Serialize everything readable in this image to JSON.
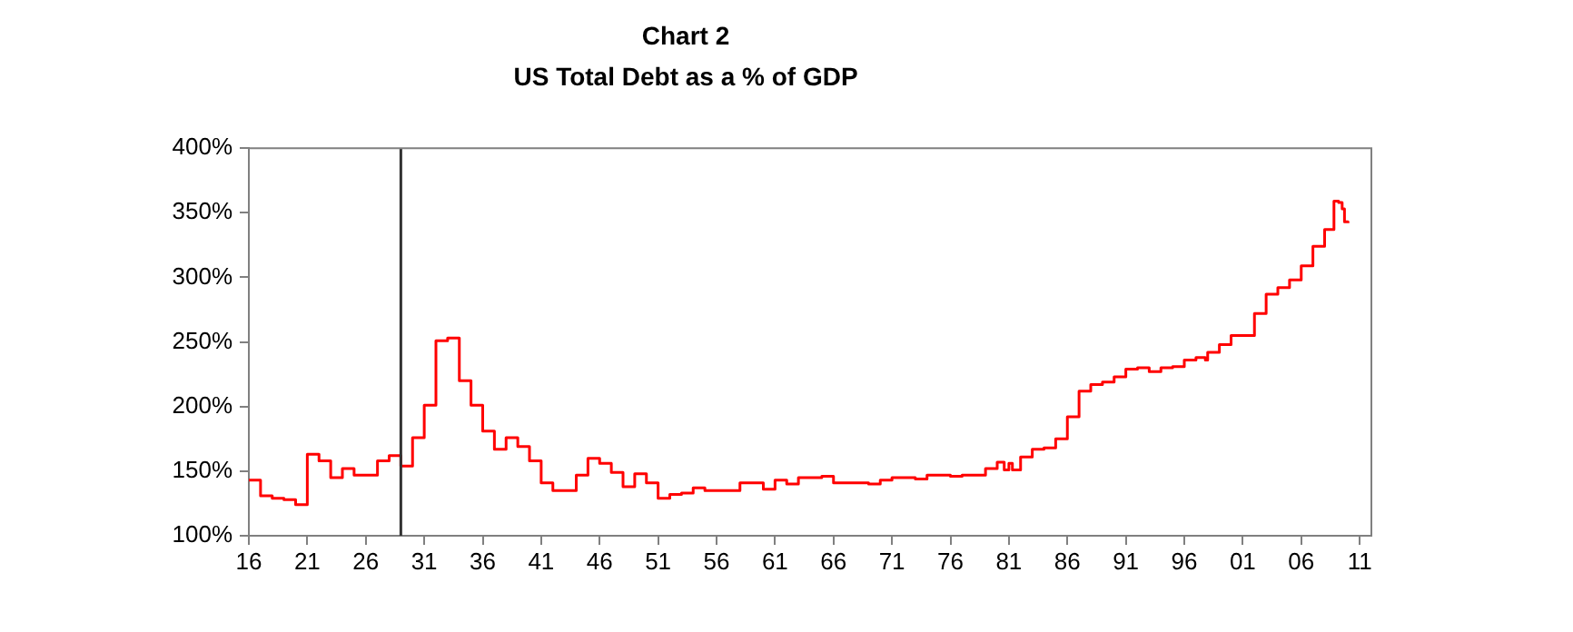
{
  "chart_data": {
    "type": "step",
    "title": "Chart 2",
    "subtitle": "US Total Debt as a % of GDP",
    "x": [
      1916,
      1917,
      1918,
      1919,
      1920,
      1921,
      1922,
      1923,
      1924,
      1925,
      1926,
      1927,
      1928,
      1929,
      1930,
      1931,
      1932,
      1933,
      1934,
      1935,
      1936,
      1937,
      1938,
      1939,
      1940,
      1941,
      1942,
      1943,
      1944,
      1945,
      1946,
      1947,
      1948,
      1949,
      1950,
      1951,
      1952,
      1953,
      1954,
      1955,
      1958,
      1960,
      1961,
      1962,
      1963,
      1965,
      1966,
      1968,
      1969,
      1970,
      1971,
      1973,
      1974,
      1976,
      1977,
      1979,
      1980,
      1980.6,
      1981,
      1981.3,
      1982,
      1983,
      1984,
      1985,
      1986,
      1987,
      1988,
      1989,
      1990,
      1991,
      1992,
      1993,
      1994,
      1995,
      1996,
      1997,
      1997.8,
      1998,
      1999,
      2000,
      2001,
      2002,
      2003,
      2004,
      2005,
      2006,
      2007,
      2008,
      2008.8,
      2009.2,
      2009.5,
      2009.7,
      2010
    ],
    "series": [
      {
        "color": "#ff0000",
        "values": [
          143,
          131,
          129,
          128,
          124,
          163,
          158,
          145,
          152,
          147,
          147,
          158,
          162,
          154,
          176,
          201,
          251,
          253,
          220,
          201,
          181,
          167,
          176,
          169,
          158,
          141,
          135,
          135,
          147,
          160,
          156,
          149,
          138,
          148,
          141,
          129,
          132,
          133,
          137,
          135,
          141,
          136,
          143,
          140,
          145,
          146,
          141,
          141,
          140,
          143,
          145,
          144,
          147,
          146,
          147,
          152,
          157,
          151,
          156,
          151,
          161,
          167,
          168,
          175,
          192,
          212,
          217,
          219,
          223,
          229,
          230,
          227,
          230,
          231,
          236,
          238,
          236,
          242,
          248,
          255,
          255,
          272,
          287,
          292,
          298,
          309,
          324,
          337,
          359,
          358,
          353,
          343,
          342
        ]
      }
    ],
    "xlim": [
      1916,
      2012
    ],
    "xticks": [
      {
        "value": 1916,
        "label": "16"
      },
      {
        "value": 1921,
        "label": "21"
      },
      {
        "value": 1926,
        "label": "26"
      },
      {
        "value": 1931,
        "label": "31"
      },
      {
        "value": 1936,
        "label": "36"
      },
      {
        "value": 1941,
        "label": "41"
      },
      {
        "value": 1946,
        "label": "46"
      },
      {
        "value": 1951,
        "label": "51"
      },
      {
        "value": 1956,
        "label": "56"
      },
      {
        "value": 1961,
        "label": "61"
      },
      {
        "value": 1966,
        "label": "66"
      },
      {
        "value": 1971,
        "label": "71"
      },
      {
        "value": 1976,
        "label": "76"
      },
      {
        "value": 1981,
        "label": "81"
      },
      {
        "value": 1986,
        "label": "86"
      },
      {
        "value": 1991,
        "label": "91"
      },
      {
        "value": 1996,
        "label": "96"
      },
      {
        "value": 2001,
        "label": "01"
      },
      {
        "value": 2006,
        "label": "06"
      },
      {
        "value": 2011,
        "label": "11"
      }
    ],
    "ylim": [
      100,
      400
    ],
    "yticks": [
      {
        "value": 100,
        "label": "100%"
      },
      {
        "value": 150,
        "label": "150%"
      },
      {
        "value": 200,
        "label": "200%"
      },
      {
        "value": 250,
        "label": "250%"
      },
      {
        "value": 300,
        "label": "300%"
      },
      {
        "value": 350,
        "label": "350%"
      },
      {
        "value": 400,
        "label": "400%"
      }
    ],
    "ref_lines": [
      {
        "axis": "x",
        "value": 1929,
        "color": "#333333"
      }
    ]
  }
}
